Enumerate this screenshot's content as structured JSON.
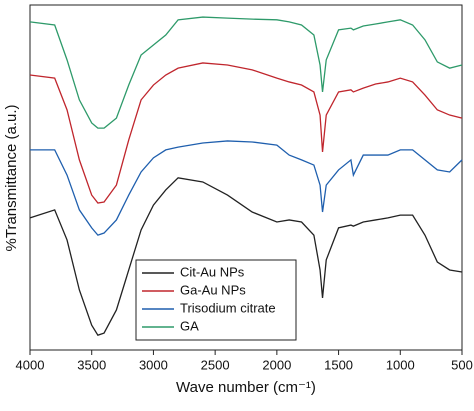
{
  "chart_data": {
    "type": "line",
    "xlabel": "Wave number (cm⁻¹)",
    "ylabel": "%Transmittance (a.u.)",
    "x": [
      4000,
      3800,
      3700,
      3600,
      3500,
      3450,
      3400,
      3300,
      3200,
      3100,
      3000,
      2900,
      2800,
      2600,
      2400,
      2200,
      2000,
      1900,
      1800,
      1700,
      1650,
      1630,
      1600,
      1500,
      1400,
      1380,
      1300,
      1200,
      1100,
      1000,
      900,
      800,
      700,
      600,
      500
    ],
    "xlim": [
      4000,
      500
    ],
    "xticks": [
      4000,
      3500,
      3000,
      2500,
      2000,
      1500,
      1000,
      500
    ],
    "ylim": [
      0,
      100
    ],
    "legend": "lower center",
    "series": [
      {
        "name": "Cit-Au NPs",
        "color": "#222222",
        "values": [
          38.3,
          40.6,
          31.9,
          17.4,
          7.2,
          4.3,
          4.9,
          11.6,
          23.2,
          34.8,
          42.0,
          46.4,
          49.9,
          48.7,
          44.9,
          40.0,
          37.1,
          37.7,
          37.1,
          33.3,
          23.2,
          15.1,
          26.1,
          35.4,
          36.2,
          35.9,
          37.1,
          37.7,
          38.3,
          39.1,
          39.1,
          33.3,
          25.5,
          23.2,
          22.6
        ]
      },
      {
        "name": "Ga-Au NPs",
        "color": "#c0262d",
        "values": [
          79.7,
          78.8,
          69.6,
          55.1,
          44.9,
          42.6,
          42.9,
          47.8,
          60.9,
          72.5,
          76.8,
          79.7,
          81.7,
          83.2,
          82.6,
          81.2,
          78.8,
          77.7,
          76.8,
          74.8,
          68.1,
          57.4,
          68.1,
          74.8,
          75.4,
          74.8,
          75.9,
          77.1,
          77.7,
          78.8,
          77.7,
          73.9,
          69.6,
          68.1,
          67.2
        ]
      },
      {
        "name": "Trisodium citrate",
        "color": "#1f5fae",
        "values": [
          58.0,
          58.0,
          50.7,
          40.6,
          35.4,
          33.3,
          33.9,
          37.7,
          44.9,
          51.6,
          55.7,
          58.0,
          58.8,
          60.0,
          60.6,
          60.3,
          59.4,
          56.5,
          55.1,
          53.6,
          47.8,
          40.0,
          47.8,
          52.2,
          55.1,
          50.7,
          56.5,
          56.5,
          56.5,
          58.0,
          58.0,
          55.1,
          52.2,
          51.6,
          55.1
        ]
      },
      {
        "name": "GA",
        "color": "#2e9a6a",
        "values": [
          95.1,
          94.2,
          84.1,
          72.5,
          65.8,
          64.3,
          64.3,
          67.2,
          76.8,
          85.5,
          88.4,
          91.3,
          95.7,
          96.5,
          96.2,
          95.9,
          95.7,
          95.1,
          94.2,
          91.3,
          82.6,
          74.8,
          84.1,
          92.8,
          93.3,
          92.8,
          93.9,
          94.5,
          95.1,
          95.7,
          94.2,
          89.9,
          83.5,
          81.7,
          82.6
        ]
      }
    ]
  }
}
